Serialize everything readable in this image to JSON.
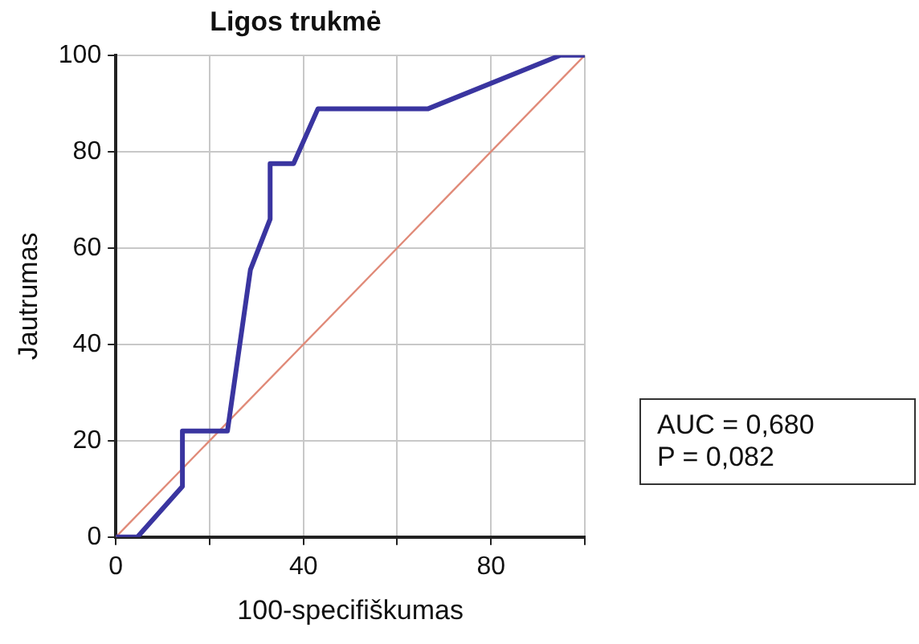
{
  "chart_data": {
    "type": "line",
    "title": "Ligos trukmė",
    "xlabel": "100-specifiškumas",
    "ylabel": "Jautrumas",
    "series": [
      {
        "color": "#3a35a0",
        "x": [
          0,
          4.6,
          14.2,
          14.2,
          23.8,
          28.7,
          32.9,
          32.9,
          37.9,
          43.1,
          66.6,
          94.8,
          100
        ],
        "values": [
          0,
          0,
          10.5,
          22,
          22,
          55.5,
          66,
          77.5,
          77.5,
          88.9,
          88.9,
          100,
          100
        ]
      },
      {
        "color": "#e08a78",
        "x": [
          0,
          100
        ],
        "values": [
          0,
          100
        ]
      }
    ],
    "xlim": [
      0,
      100
    ],
    "ylim": [
      0,
      100
    ],
    "xticks": [
      0,
      {
        "value": 20,
        "label": null
      },
      40,
      {
        "value": 60,
        "label": null
      },
      80,
      {
        "value": 100,
        "label": null
      }
    ],
    "yticks": [
      0,
      20,
      40,
      60,
      80,
      100
    ],
    "grid": true,
    "legend": false,
    "marker": "none",
    "line_style": "solid",
    "annotations": [
      "AUC = 0,680",
      "P = 0,082"
    ]
  }
}
